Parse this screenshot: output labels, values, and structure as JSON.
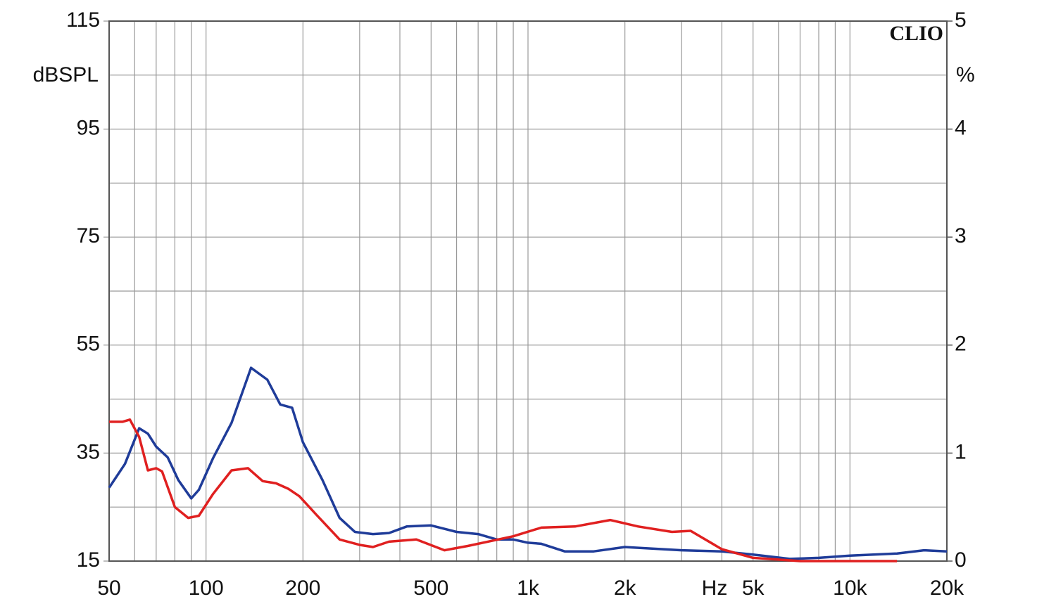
{
  "chart_data": {
    "type": "line",
    "brand": "CLIO",
    "ylabel": "dBSPL",
    "y2label": "%",
    "xlabel": "Hz",
    "log_x": true,
    "grid": true,
    "xlim": [
      50,
      20000
    ],
    "xticks": [
      50,
      100,
      200,
      500,
      {
        "value": 1000,
        "label": "1k"
      },
      {
        "value": 2000,
        "label": "2k"
      },
      {
        "value": 5000,
        "label": "5k"
      },
      {
        "value": 10000,
        "label": "10k"
      },
      {
        "value": 20000,
        "label": "20k"
      }
    ],
    "x_minor_ticks": [
      60,
      70,
      80,
      90,
      300,
      400,
      600,
      700,
      800,
      900,
      3000,
      4000,
      6000,
      7000,
      8000,
      9000
    ],
    "ylim": [
      15,
      115
    ],
    "yticks": [
      15,
      35,
      55,
      75,
      95,
      115
    ],
    "y_minor_ticks": [
      25,
      45,
      65,
      85,
      105
    ],
    "y2lim": [
      0,
      5
    ],
    "y2ticks": [
      0,
      1,
      2,
      3,
      4,
      5
    ],
    "series": [
      {
        "color": "#1f3c99",
        "axis": "y2",
        "x": [
          50,
          56,
          62,
          66,
          70,
          76,
          82,
          90,
          95,
          105,
          120,
          138,
          155,
          170,
          185,
          200,
          230,
          260,
          290,
          330,
          370,
          420,
          500,
          600,
          700,
          800,
          900,
          1000,
          1100,
          1300,
          1600,
          2000,
          3000,
          4000,
          5000,
          6500,
          8000,
          10000,
          14000,
          17000,
          20000
        ],
        "values": [
          0.68,
          0.9,
          1.23,
          1.18,
          1.06,
          0.96,
          0.75,
          0.58,
          0.66,
          0.95,
          1.28,
          1.79,
          1.68,
          1.45,
          1.42,
          1.1,
          0.75,
          0.4,
          0.27,
          0.25,
          0.26,
          0.32,
          0.33,
          0.27,
          0.25,
          0.2,
          0.2,
          0.17,
          0.16,
          0.09,
          0.09,
          0.13,
          0.1,
          0.09,
          0.06,
          0.02,
          0.03,
          0.05,
          0.07,
          0.1,
          0.09
        ]
      },
      {
        "color": "#e02020",
        "axis": "y2",
        "x": [
          50,
          55,
          58,
          62,
          66,
          70,
          73,
          80,
          88,
          95,
          105,
          120,
          135,
          150,
          165,
          180,
          195,
          220,
          260,
          300,
          330,
          370,
          450,
          550,
          650,
          750,
          900,
          1100,
          1400,
          1800,
          2200,
          2800,
          3200,
          4000,
          5000,
          7000,
          10000,
          14000
        ],
        "values": [
          1.29,
          1.29,
          1.31,
          1.15,
          0.84,
          0.86,
          0.83,
          0.5,
          0.4,
          0.42,
          0.62,
          0.84,
          0.86,
          0.74,
          0.72,
          0.67,
          0.6,
          0.43,
          0.2,
          0.15,
          0.13,
          0.18,
          0.2,
          0.1,
          0.14,
          0.18,
          0.23,
          0.31,
          0.32,
          0.38,
          0.32,
          0.27,
          0.28,
          0.11,
          0.03,
          0,
          0,
          0
        ]
      }
    ]
  }
}
